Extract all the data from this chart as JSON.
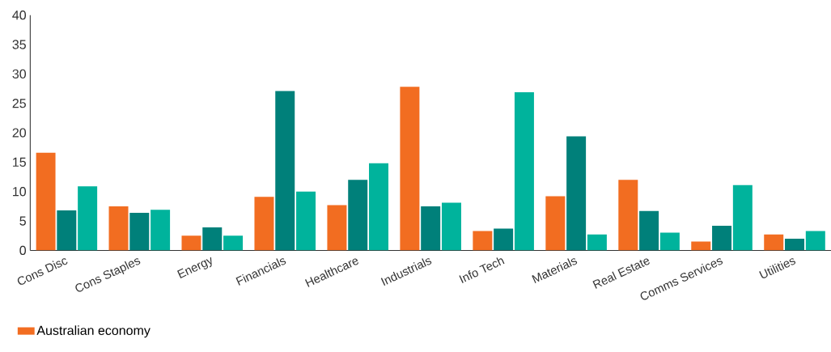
{
  "chart_data": {
    "type": "bar",
    "categories": [
      "Cons Disc",
      "Cons Staples",
      "Energy",
      "Financials",
      "Healthcare",
      "Industrials",
      "Info Tech",
      "Materials",
      "Real Estate",
      "Comms Services",
      "Utilities"
    ],
    "series": [
      {
        "name": "Australian economy",
        "color": "#f26d21",
        "values": [
          16.6,
          7.5,
          2.5,
          9.1,
          7.7,
          27.8,
          3.3,
          9.2,
          12.0,
          1.5,
          2.7
        ]
      },
      {
        "color": "#00807a",
        "values": [
          6.8,
          6.4,
          3.9,
          27.1,
          12.0,
          7.5,
          3.7,
          19.4,
          6.7,
          4.2,
          2.0
        ]
      },
      {
        "color": "#00b39c",
        "values": [
          10.9,
          6.9,
          2.5,
          10.0,
          14.8,
          8.1,
          26.9,
          2.7,
          3.0,
          11.1,
          3.3
        ]
      }
    ],
    "ylim": [
      0,
      40
    ],
    "yticks": [
      0,
      5,
      10,
      15,
      20,
      25,
      30,
      35,
      40
    ],
    "grid": false,
    "legend": "bottom"
  }
}
